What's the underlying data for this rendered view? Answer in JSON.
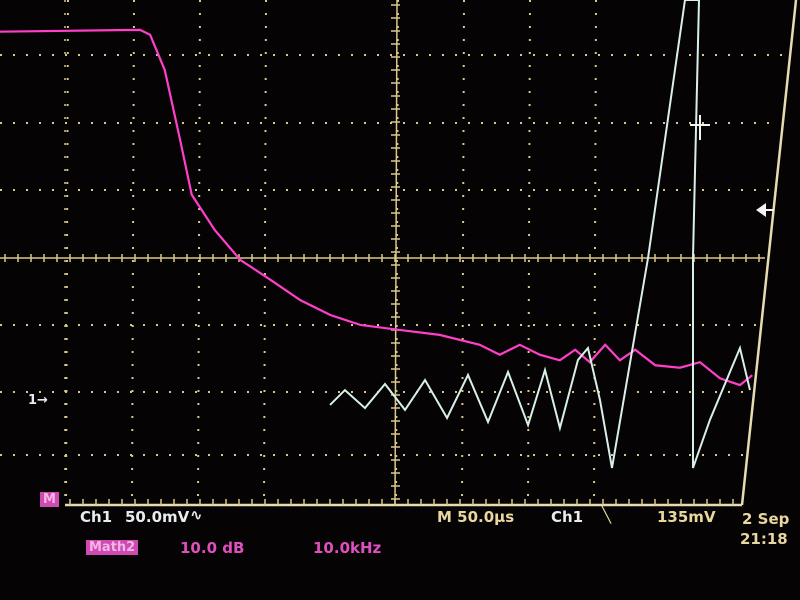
{
  "colors": {
    "ch1": "#d8f0e8",
    "math2": "#ff3fc8",
    "graticule": "#d9c98a",
    "badge": "#d04ab4",
    "background": "#050304"
  },
  "markers": {
    "ch1_ground": "1→",
    "math_badge": "M",
    "trigger_level": "trigger-arrow-icon",
    "cursor": "crosshair-icon"
  },
  "readout": {
    "ch1_label": "Ch1",
    "ch1_scale": "50.0mV",
    "ch1_coupling": "∿",
    "timebase": "M 50.0µs",
    "trigger_source": "Ch1",
    "trigger_slope": "╲",
    "trigger_level": "135mV",
    "date": "2 Sep",
    "time": "21:18",
    "math_label": "Math2",
    "math_scale": "10.0 dB",
    "math_freq": "10.0kHz"
  },
  "chart_data": {
    "type": "line",
    "grid": true,
    "divisions": {
      "x": 10,
      "y": 8
    },
    "series": [
      {
        "name": "Math2",
        "x_unit": "kHz",
        "y_unit": "dB",
        "x": [
          0,
          18.2,
          19.5,
          21.4,
          23.4,
          24.9,
          27.9,
          31.2,
          35.1,
          39,
          42.9,
          46.8,
          51.9,
          57.1,
          62.3,
          64.9,
          67.5,
          70.1,
          72.7,
          74.7,
          76.6,
          78.6,
          80.5,
          82.5,
          85.1,
          88.3,
          90.9,
          93.5,
          96.1,
          97.7
        ],
        "y": [
          36.5,
          36.8,
          36,
          30.3,
          19,
          10.2,
          4.5,
          -0.3,
          -3.5,
          -6.8,
          -9.2,
          -10.8,
          -11.6,
          -12.4,
          -14,
          -15.6,
          -14,
          -15.6,
          -16.5,
          -14.8,
          -16.8,
          -14,
          -16.5,
          -14.8,
          -17.3,
          -17.7,
          -16.8,
          -19.4,
          -20.5,
          -18.9
        ]
      },
      {
        "name": "Ch1",
        "x_unit": "µs",
        "y_unit": "mV",
        "x": [
          -42.2,
          -32.5,
          -19.5,
          -6.5,
          6.5,
          19.5,
          33.8,
          47.4,
          60.4,
          73.4,
          86.4,
          97.4,
          107.1,
          118.8,
          125.3,
          133.1,
          140.9,
          164.3,
          188.3,
          197.4,
          193.5,
          193.5,
          204.5,
          224,
          230.5
        ],
        "y": [
          -4,
          8,
          -6.5,
          12.9,
          -8,
          16.1,
          -14.5,
          20.2,
          -17.7,
          22.6,
          -20.2,
          24.2,
          -22.6,
          32.3,
          41.9,
          0,
          -54.8,
          114.5,
          322.6,
          322.6,
          114.5,
          -54.8,
          -16,
          41.9,
          8
        ]
      }
    ]
  }
}
